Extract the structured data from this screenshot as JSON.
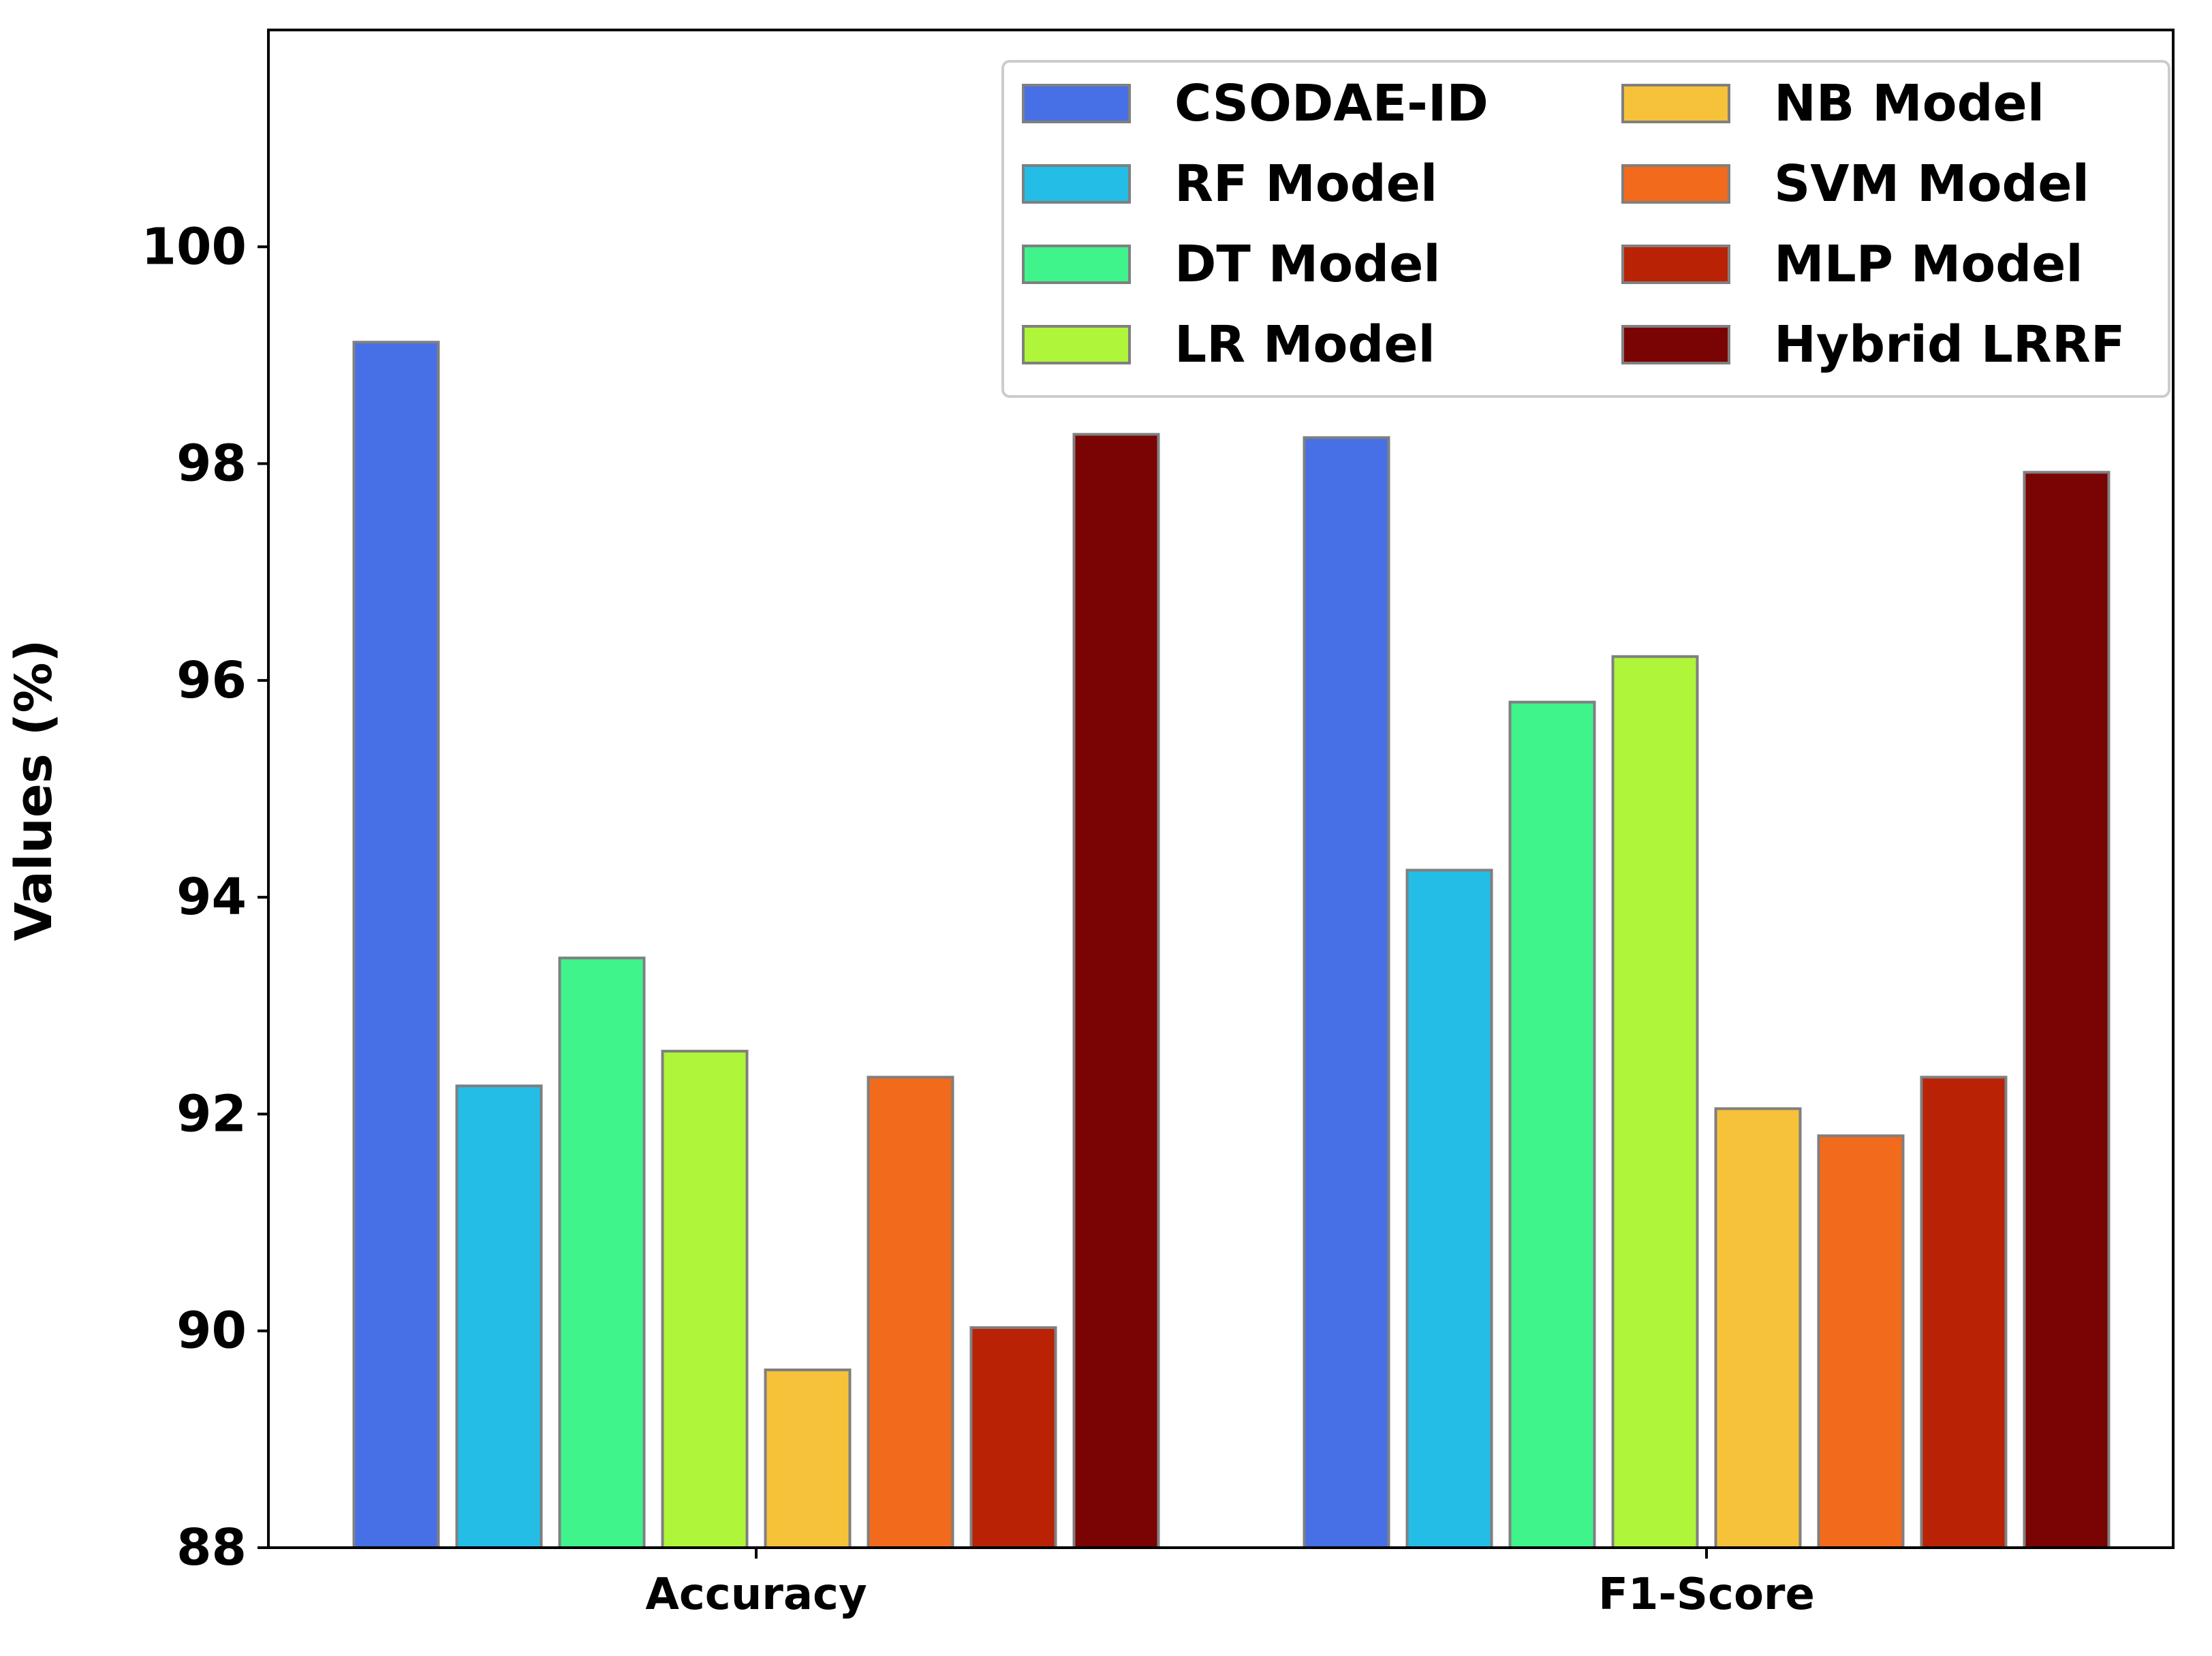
{
  "chart_data": {
    "type": "bar",
    "title": "",
    "xlabel": "",
    "ylabel": "Values (%)",
    "ylim": [
      88,
      102
    ],
    "yticks": [
      88,
      90,
      92,
      94,
      96,
      98,
      100
    ],
    "categories": [
      "Accuracy",
      "F1-Score"
    ],
    "legend_position": "top-right",
    "grid": false,
    "series": [
      {
        "name": "CSODAE-ID",
        "color": "#4770e6",
        "values": [
          99.12,
          98.24
        ]
      },
      {
        "name": "RF Model",
        "color": "#23bde6",
        "values": [
          92.26,
          94.25
        ]
      },
      {
        "name": "DT Model",
        "color": "#40f48c",
        "values": [
          93.44,
          95.8
        ]
      },
      {
        "name": "LR Model",
        "color": "#aff53a",
        "values": [
          92.58,
          96.22
        ]
      },
      {
        "name": "NB Model",
        "color": "#f6c23a",
        "values": [
          89.64,
          92.05
        ]
      },
      {
        "name": "SVM Model",
        "color": "#f26a1b",
        "values": [
          92.34,
          91.8
        ]
      },
      {
        "name": "MLP Model",
        "color": "#ba2205",
        "values": [
          90.03,
          92.34
        ]
      },
      {
        "name": "Hybrid LRRF",
        "color": "#7a0403",
        "values": [
          98.27,
          97.92
        ]
      }
    ]
  }
}
